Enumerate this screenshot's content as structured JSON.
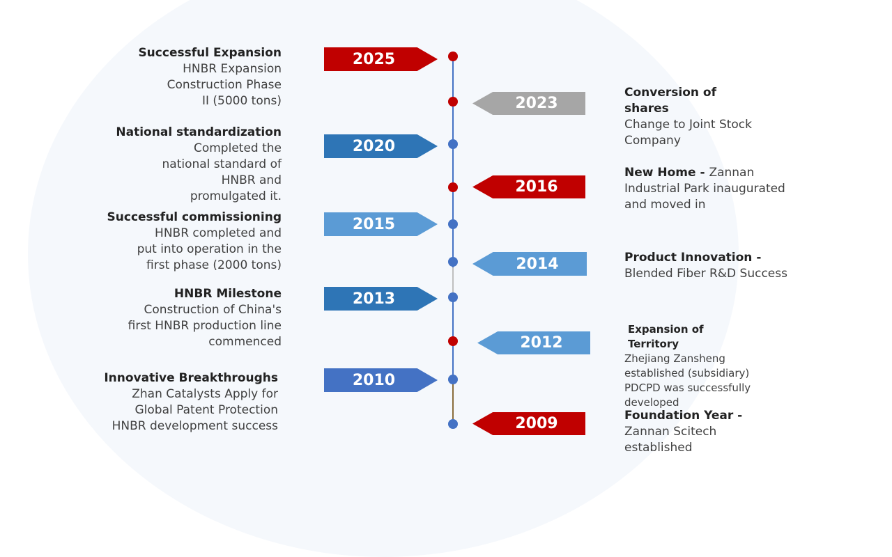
{
  "colors": {
    "red": "#c00000",
    "gray": "#a6a6a6",
    "dark_blue": "#2e75b6",
    "light_blue": "#5b9bd5",
    "royal_blue": "#4472c4",
    "dot_blue": "#4472c4",
    "dot_red": "#c00000"
  },
  "events": [
    {
      "year": "2025",
      "title": "Successful Expansion",
      "body": "HNBR Expansion Construction Phase II (5000 tons)"
    },
    {
      "year": "2023",
      "title": "Conversion of shares",
      "body": "Change to Joint Stock Company"
    },
    {
      "year": "2020",
      "title": "National standardization",
      "body": "Completed the national standard of HNBR and promulgated it."
    },
    {
      "year": "2016",
      "title": "New Home - ",
      "body": "Zannan Industrial Park inaugurated and moved in"
    },
    {
      "year": "2015",
      "title": "Successful commissioning",
      "body": "HNBR completed and put into operation in the first phase (2000 tons)"
    },
    {
      "year": "2014",
      "title": "Product Innovation -",
      "body": "Blended Fiber R&D Success"
    },
    {
      "year": "2013",
      "title": "HNBR Milestone",
      "body": "Construction of China's first HNBR production line commenced"
    },
    {
      "year": "2012",
      "title": "Expansion of Territory",
      "body": "Zhejiang Zansheng established (subsidiary) PDCPD was successfully developed"
    },
    {
      "year": "2010",
      "title": "Innovative Breakthroughs",
      "body": "Zhan Catalysts Apply for Global Patent Protection HNBR development success"
    },
    {
      "year": "2009",
      "title": "Foundation Year - ",
      "body": "Zannan Scitech established"
    }
  ]
}
